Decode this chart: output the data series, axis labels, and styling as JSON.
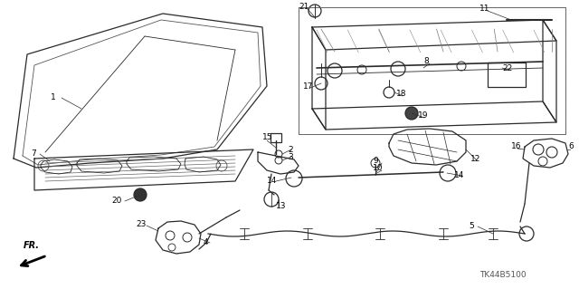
{
  "bg_color": "#ffffff",
  "line_color": "#2a2a2a",
  "text_color": "#000000",
  "fig_width": 6.4,
  "fig_height": 3.19,
  "dpi": 100,
  "watermark": "TK44B5100",
  "watermark_fontsize": 6.5
}
